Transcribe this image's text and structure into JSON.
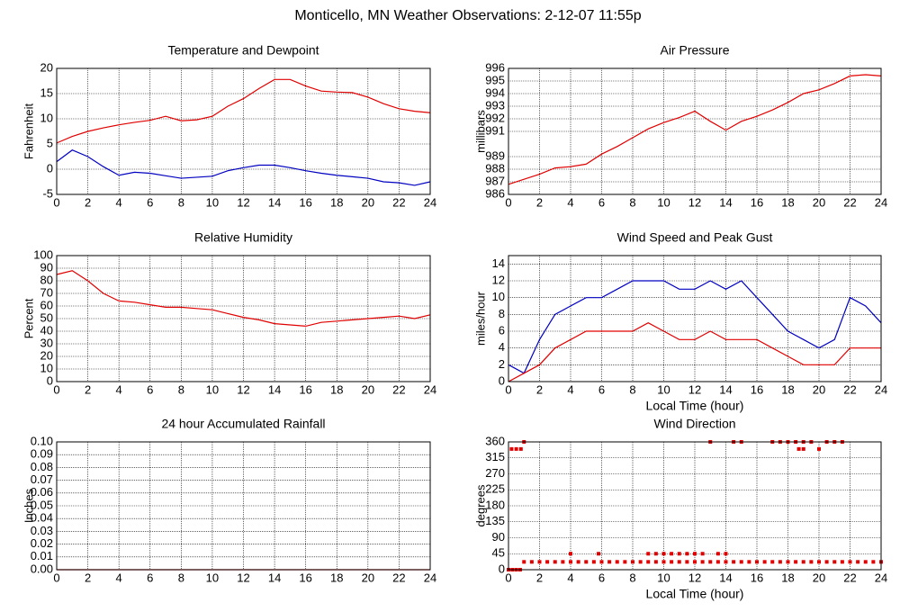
{
  "title": "Monticello, MN Weather Observations: 2-12-07 11:55p",
  "chart_data": [
    {
      "type": "line",
      "title": "Temperature and Dewpoint",
      "ylabel": "Fahrenheit",
      "x": [
        0,
        1,
        2,
        3,
        4,
        5,
        6,
        7,
        8,
        9,
        10,
        11,
        12,
        13,
        14,
        15,
        16,
        17,
        18,
        19,
        20,
        21,
        22,
        23,
        24
      ],
      "series": [
        {
          "color": "#e00000",
          "values": [
            5.2,
            6.5,
            7.5,
            8.2,
            8.8,
            9.3,
            9.7,
            10.5,
            9.6,
            9.8,
            10.5,
            12.5,
            14,
            16,
            17.8,
            17.8,
            16.5,
            15.5,
            15.3,
            15.2,
            14.3,
            13,
            12,
            11.5,
            11.2
          ]
        },
        {
          "color": "#0000c0",
          "values": [
            1.5,
            3.8,
            2.5,
            0.5,
            -1.2,
            -0.6,
            -0.8,
            -1.3,
            -1.8,
            -1.6,
            -1.4,
            -0.3,
            0.3,
            0.8,
            0.8,
            0.3,
            -0.3,
            -0.8,
            -1.2,
            -1.5,
            -1.8,
            -2.5,
            -2.7,
            -3.2,
            -2.5
          ]
        }
      ],
      "xlim": [
        0,
        24
      ],
      "xticks": [
        0,
        2,
        4,
        6,
        8,
        10,
        12,
        14,
        16,
        18,
        20,
        22,
        24
      ],
      "ylim": [
        -5,
        20
      ],
      "yticks": [
        -5,
        0,
        5,
        10,
        15,
        20
      ],
      "grid": true
    },
    {
      "type": "line",
      "title": "Air Pressure",
      "ylabel": "millibars",
      "x": [
        0,
        1,
        2,
        3,
        4,
        5,
        6,
        7,
        8,
        9,
        10,
        11,
        12,
        13,
        14,
        15,
        16,
        17,
        18,
        19,
        20,
        21,
        22,
        23,
        24
      ],
      "series": [
        {
          "color": "#e00000",
          "values": [
            986.8,
            987.2,
            987.6,
            988.1,
            988.2,
            988.4,
            989.2,
            989.8,
            990.5,
            991.2,
            991.7,
            992.1,
            992.6,
            991.8,
            991.1,
            991.8,
            992.2,
            992.7,
            993.3,
            994,
            994.3,
            994.8,
            995.4,
            995.5,
            995.4
          ]
        }
      ],
      "xlim": [
        0,
        24
      ],
      "xticks": [
        0,
        2,
        4,
        6,
        8,
        10,
        12,
        14,
        16,
        18,
        20,
        22,
        24
      ],
      "ylim": [
        986,
        996
      ],
      "yticks": [
        986,
        987,
        988,
        989,
        991,
        992,
        993,
        994,
        995,
        996
      ],
      "grid": true
    },
    {
      "type": "line",
      "title": "Relative Humidity",
      "ylabel": "Percent",
      "x": [
        0,
        1,
        2,
        3,
        4,
        5,
        6,
        7,
        8,
        9,
        10,
        11,
        12,
        13,
        14,
        15,
        16,
        17,
        18,
        19,
        20,
        21,
        22,
        23,
        24
      ],
      "series": [
        {
          "color": "#e00000",
          "values": [
            85,
            88,
            80,
            70,
            64,
            63,
            61,
            59,
            59,
            58,
            57,
            54,
            51,
            49,
            46,
            45,
            44,
            47,
            48,
            49,
            50,
            51,
            52,
            50,
            53
          ]
        }
      ],
      "xlim": [
        0,
        24
      ],
      "xticks": [
        0,
        2,
        4,
        6,
        8,
        10,
        12,
        14,
        16,
        18,
        20,
        22,
        24
      ],
      "ylim": [
        0,
        100
      ],
      "yticks": [
        0,
        10,
        20,
        30,
        40,
        50,
        60,
        70,
        80,
        90,
        100
      ],
      "grid": true
    },
    {
      "type": "line",
      "title": "Wind Speed and Peak Gust",
      "ylabel": "miles/hour",
      "xlabel": "Local Time (hour)",
      "x": [
        0,
        1,
        2,
        3,
        4,
        5,
        6,
        7,
        8,
        9,
        10,
        11,
        12,
        13,
        14,
        15,
        16,
        17,
        18,
        19,
        20,
        21,
        22,
        23,
        24
      ],
      "series": [
        {
          "color": "#0000c0",
          "values": [
            2,
            1,
            5,
            8,
            9,
            10,
            10,
            11,
            12,
            12,
            12,
            11,
            11,
            12,
            11,
            12,
            10,
            8,
            6,
            5,
            4,
            5,
            10,
            9,
            7
          ]
        },
        {
          "color": "#e00000",
          "values": [
            0,
            1,
            2,
            4,
            5,
            6,
            6,
            6,
            6,
            7,
            6,
            5,
            5,
            6,
            5,
            5,
            5,
            4,
            3,
            2,
            2,
            2,
            4,
            4,
            4
          ]
        }
      ],
      "xlim": [
        0,
        24
      ],
      "xticks": [
        0,
        2,
        4,
        6,
        8,
        10,
        12,
        14,
        16,
        18,
        20,
        22,
        24
      ],
      "ylim": [
        0,
        15
      ],
      "yticks": [
        0,
        2,
        4,
        6,
        8,
        10,
        12,
        14
      ],
      "grid": true
    },
    {
      "type": "line",
      "title": "24 hour Accumulated Rainfall",
      "ylabel": "Inches",
      "x": [
        0,
        24
      ],
      "series": [
        {
          "color": "#e00000",
          "values": [
            0,
            0
          ]
        }
      ],
      "xlim": [
        0,
        24
      ],
      "xticks": [
        0,
        2,
        4,
        6,
        8,
        10,
        12,
        14,
        16,
        18,
        20,
        22,
        24
      ],
      "ylim": [
        0,
        0.1
      ],
      "yticks": [
        {
          "value": 0,
          "label": "0.00"
        },
        {
          "value": 0.01,
          "label": "0.01"
        },
        {
          "value": 0.02,
          "label": "0.02"
        },
        {
          "value": 0.03,
          "label": "0.03"
        },
        {
          "value": 0.04,
          "label": "0.04"
        },
        {
          "value": 0.05,
          "label": "0.05"
        },
        {
          "value": 0.06,
          "label": "0.06"
        },
        {
          "value": 0.07,
          "label": "0.07"
        },
        {
          "value": 0.08,
          "label": "0.08"
        },
        {
          "value": 0.09,
          "label": "0.09"
        },
        {
          "value": 0.1,
          "label": "0.10"
        }
      ],
      "grid": true
    },
    {
      "type": "scatter",
      "title": "Wind Direction",
      "ylabel": "degrees",
      "xlabel": "Local Time (hour)",
      "x": [
        0,
        0.25,
        0.5,
        0.75,
        0.2,
        0.5,
        0.8,
        1,
        1,
        1.5,
        2,
        2.5,
        3,
        3.5,
        4,
        4.5,
        5,
        5.5,
        6,
        6.5,
        7,
        7.5,
        8,
        8.5,
        9,
        9.5,
        10,
        10.5,
        11,
        11.5,
        12,
        12.5,
        13,
        13.5,
        14,
        14.5,
        15,
        15.5,
        16,
        16.5,
        17,
        17.5,
        18,
        18.5,
        19,
        19.5,
        20,
        20.5,
        21,
        21.5,
        22,
        22.5,
        23,
        23.5,
        24,
        4,
        5.8,
        9,
        9.5,
        10,
        10.5,
        11,
        11.5,
        12,
        12.5,
        13.5,
        14,
        13,
        14.5,
        15,
        17,
        17.5,
        18,
        18.5,
        19,
        19.5,
        20.5,
        21,
        21.5,
        18.7,
        19,
        20
      ],
      "series": [
        {
          "color": "#e00000",
          "values": [
            0,
            0,
            0,
            0,
            340,
            340,
            340,
            360,
            22,
            22,
            22,
            22,
            22,
            22,
            22,
            22,
            22,
            22,
            22,
            22,
            22,
            22,
            22,
            22,
            22,
            22,
            22,
            22,
            22,
            22,
            22,
            22,
            22,
            22,
            22,
            22,
            22,
            22,
            22,
            22,
            22,
            22,
            22,
            22,
            22,
            22,
            22,
            22,
            22,
            22,
            22,
            22,
            22,
            22,
            22,
            45,
            45,
            45,
            45,
            45,
            45,
            45,
            45,
            45,
            45,
            45,
            45,
            360,
            360,
            360,
            360,
            360,
            360,
            360,
            360,
            360,
            360,
            360,
            360,
            340,
            340,
            340
          ]
        }
      ],
      "xlim": [
        0,
        24
      ],
      "xticks": [
        0,
        2,
        4,
        6,
        8,
        10,
        12,
        14,
        16,
        18,
        20,
        22,
        24
      ],
      "ylim": [
        0,
        360
      ],
      "yticks": [
        0,
        45,
        90,
        135,
        180,
        225,
        270,
        315,
        360
      ],
      "grid": true
    }
  ]
}
